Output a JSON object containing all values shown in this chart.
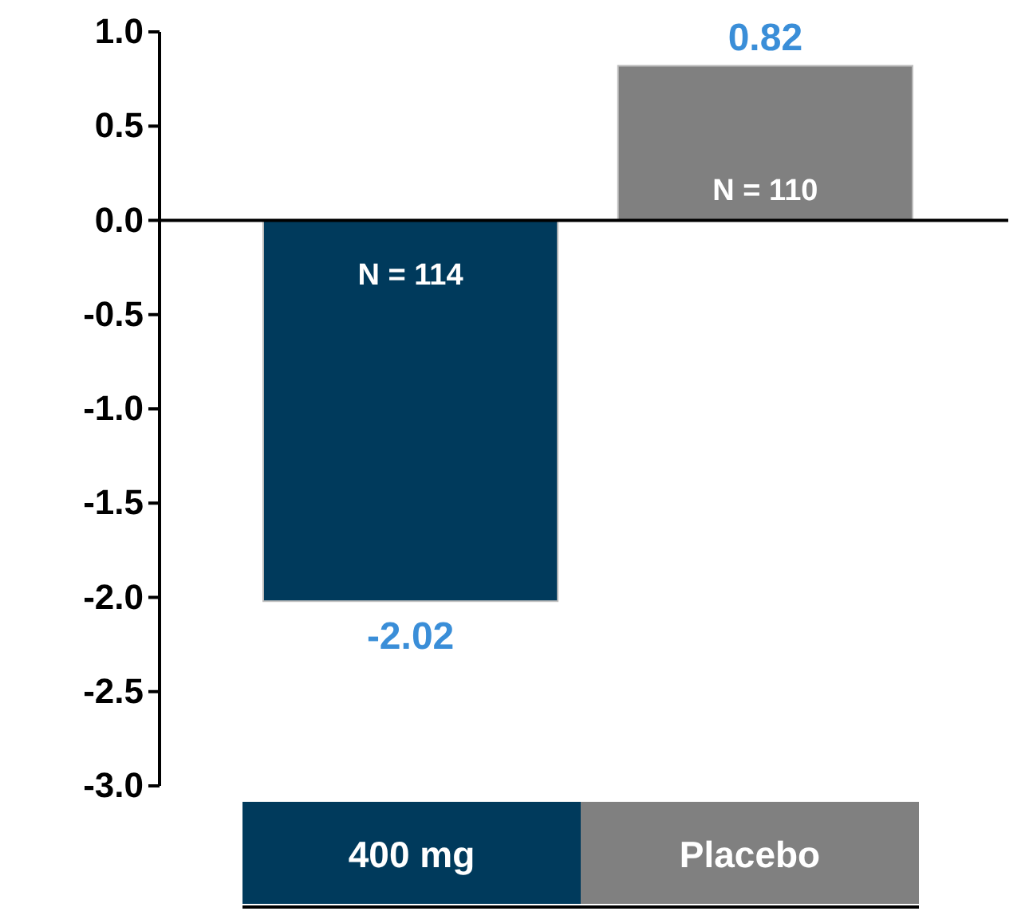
{
  "chart_data": {
    "type": "bar",
    "categories": [
      "400 mg",
      "Placebo"
    ],
    "values": [
      -2.02,
      0.82
    ],
    "colors": [
      "#003a5c",
      "#808080"
    ],
    "ylim": [
      -3,
      1
    ],
    "yticks": [
      {
        "value": 1,
        "label": "1.0"
      },
      0.5,
      {
        "value": 0,
        "label": "0.0"
      },
      -0.5,
      {
        "value": -1,
        "label": "-1.0"
      },
      -1.5,
      {
        "value": -2,
        "label": "-2.0"
      },
      -2.5,
      {
        "value": -3,
        "label": "-3.0"
      }
    ],
    "data_labels": true,
    "annotations": [
      "N = 114",
      "N = 110"
    ]
  }
}
